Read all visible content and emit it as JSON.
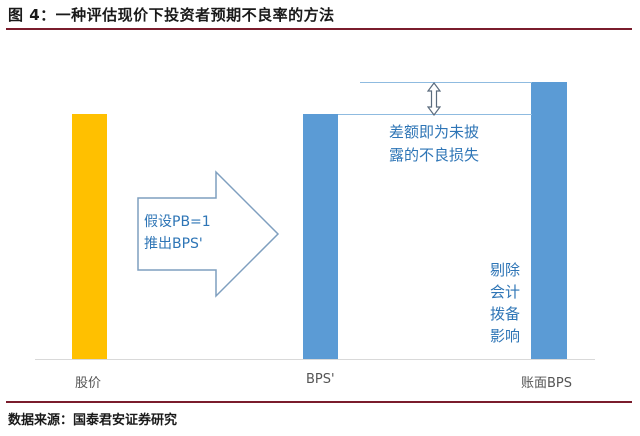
{
  "header": {
    "title": "图 4：一种评估现价下投资者预期不良率的方法"
  },
  "footer": {
    "source": "数据来源：国泰君安证券研究"
  },
  "diagram": {
    "bars": [
      {
        "label": "股价",
        "color": "#ffc000"
      },
      {
        "label": "BPS'",
        "color": "#5b9bd5"
      },
      {
        "label": "账面BPS",
        "color": "#5b9bd5"
      }
    ],
    "arrow_text": [
      "假设PB=1",
      "推出BPS'"
    ],
    "gap_text": [
      "差额即为未披",
      "露的不良损失"
    ],
    "inner_text": [
      "剔除",
      "会计",
      "拨备",
      "影响"
    ]
  }
}
